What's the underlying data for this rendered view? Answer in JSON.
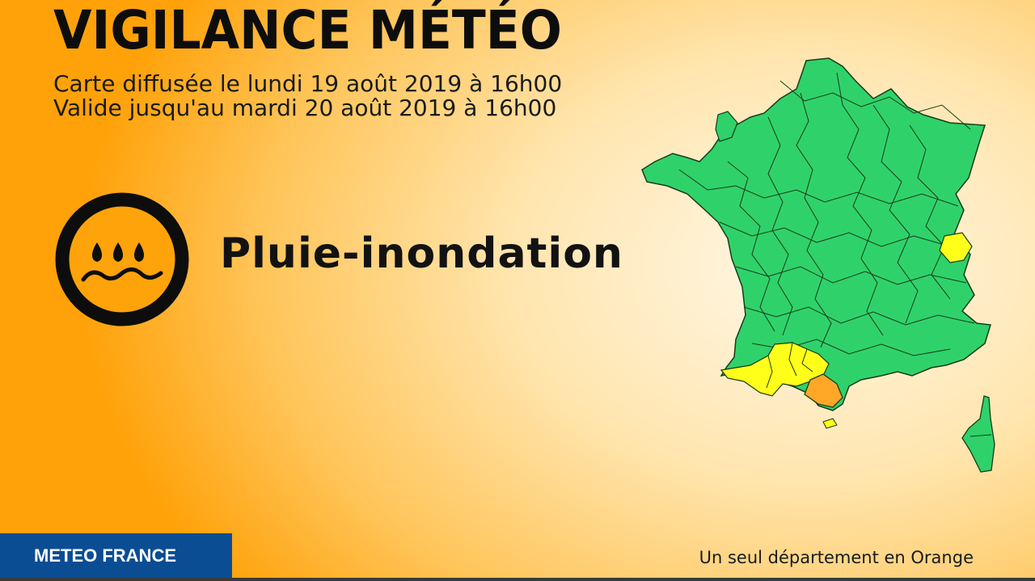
{
  "header": {
    "title": "VIGILANCE MÉTÉO",
    "issued": "Carte diffusée le lundi 19 août 2019 à 16h00",
    "valid": "Valide jusqu'au mardi 20 août 2019 à 16h00"
  },
  "phenomenon": {
    "label": "Pluie-inondation",
    "icon": "rain-flood-icon"
  },
  "legend_note": "Un seul département en Orange",
  "brand": "METEO FRANCE",
  "colors": {
    "green": "#2fd26a",
    "yellow": "#ffff1a",
    "orange": "#ffa726",
    "icon_orange": "#ffa30a",
    "brand_blue": "#0a4d93"
  },
  "map": {
    "name": "France",
    "alert_levels": {
      "orange": 1,
      "yellow_zone": "south-west / Pyrenees + Isère",
      "default": "green"
    }
  }
}
